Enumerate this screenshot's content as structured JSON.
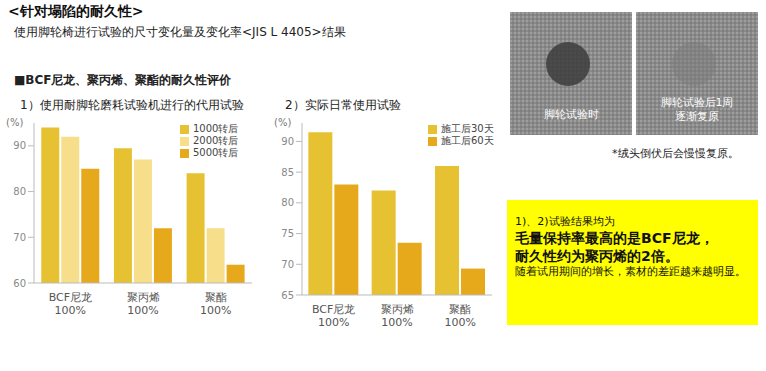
{
  "title": "<针对塌陷的耐久性>",
  "subtitle": "使用脚轮椅进行试验的尺寸变化量及变化率<JIS L 4405>结果",
  "section": "■BCF尼龙、聚丙烯、聚酯的耐久性评价",
  "chart_data": [
    {
      "type": "bar",
      "title": "1）使用耐脚轮磨耗试验机进行的代用试验",
      "ylabel": "(%)",
      "categories": [
        "BCF尼龙\n100%",
        "聚丙烯\n100%",
        "聚酯\n100%"
      ],
      "series": [
        {
          "name": "1000转后",
          "color": "#e6c232",
          "values": [
            94,
            89.5,
            84
          ]
        },
        {
          "name": "2000转后",
          "color": "#f7de8a",
          "values": [
            92,
            87,
            72
          ]
        },
        {
          "name": "5000转后",
          "color": "#e6a91c",
          "values": [
            85,
            72,
            64
          ]
        }
      ],
      "ylim": [
        60,
        95
      ],
      "yticks": [
        60,
        70,
        80,
        90
      ],
      "legend": "upper right",
      "grid": false
    },
    {
      "type": "bar",
      "title": "2）实际日常使用试验",
      "ylabel": "(%)",
      "categories": [
        "BCF尼龙\n100%",
        "聚丙烯\n100%",
        "聚酯\n100%"
      ],
      "series": [
        {
          "name": "施工后30天",
          "color": "#e6c232",
          "values": [
            91.5,
            82,
            86
          ]
        },
        {
          "name": "施工后60天",
          "color": "#e6a91c",
          "values": [
            83,
            73.5,
            69.3
          ]
        }
      ],
      "ylim": [
        65,
        93
      ],
      "yticks": [
        65,
        70,
        75,
        80,
        85,
        90
      ],
      "legend": "upper right",
      "grid": false
    }
  ],
  "photos": [
    {
      "label": [
        "脚轮试验时"
      ]
    },
    {
      "label": [
        "脚轮试验后1周",
        "逐渐复原"
      ]
    }
  ],
  "photo_caption": "*绒头倒伏后会慢慢复原。",
  "note": {
    "intro": "1)、2)试验结果均为",
    "bold_lines": [
      "毛量保持率最高的是BCF尼龙，",
      "耐久性约为聚丙烯的2倍。"
    ],
    "small": "随着试用期间的增长，素材的差距越来越明显。"
  }
}
